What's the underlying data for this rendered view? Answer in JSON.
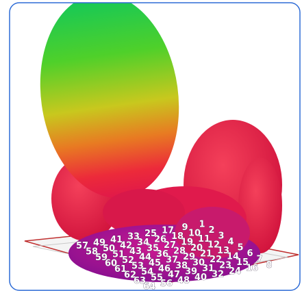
{
  "element_labels": [
    1,
    2,
    3,
    4,
    5,
    6,
    7,
    8,
    9,
    10,
    11,
    12,
    13,
    14,
    15,
    16,
    17,
    18,
    19,
    20,
    21,
    22,
    23,
    24,
    25,
    26,
    27,
    28,
    29,
    30,
    31,
    32,
    33,
    34,
    35,
    36,
    37,
    38,
    39,
    40,
    41,
    42,
    43,
    44,
    45,
    46,
    47,
    48,
    49,
    50,
    51,
    52,
    53,
    54,
    55,
    56,
    57,
    58,
    59,
    60,
    61,
    62,
    63,
    64
  ]
}
